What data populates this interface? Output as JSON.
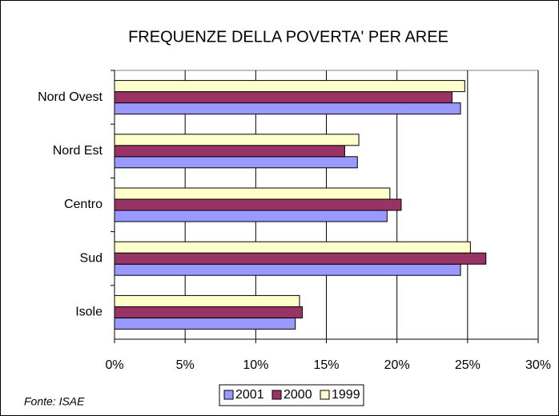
{
  "chart_data": {
    "type": "hbar",
    "title": "FREQUENZE DELLA POVERTA' PER AREE",
    "annotation": "Fonte: ISAE",
    "categories": [
      "Nord Ovest",
      "Nord Est",
      "Centro",
      "Sud",
      "Isole"
    ],
    "series": [
      {
        "name": "2001",
        "color": "#9999ff",
        "values": [
          24.5,
          17.2,
          19.3,
          24.5,
          12.8
        ]
      },
      {
        "name": "2000",
        "color": "#993366",
        "values": [
          23.9,
          16.3,
          20.3,
          26.3,
          13.3
        ]
      },
      {
        "name": "1999",
        "color": "#ffffcc",
        "values": [
          24.8,
          17.3,
          19.5,
          25.2,
          13.1
        ]
      }
    ],
    "xlim": [
      0,
      30
    ],
    "xticks": [
      {
        "value": 0,
        "label": "0%"
      },
      {
        "value": 5,
        "label": "5%"
      },
      {
        "value": 10,
        "label": "10%"
      },
      {
        "value": 15,
        "label": "15%"
      },
      {
        "value": 20,
        "label": "20%"
      },
      {
        "value": 25,
        "label": "25%"
      },
      {
        "value": 30,
        "label": "30%"
      }
    ],
    "grid": true,
    "legend": "bottom"
  }
}
